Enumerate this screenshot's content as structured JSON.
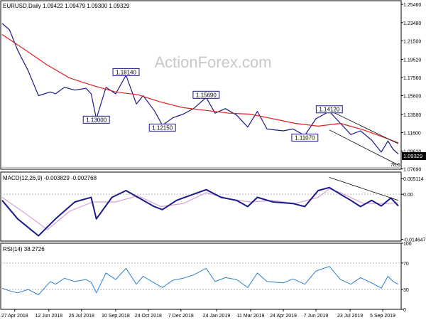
{
  "chart_data": {
    "type": "line",
    "panels": [
      {
        "id": "price",
        "title": "EURUSD,Daily  1.09422 1.09479 1.09300 1.09329",
        "ylim": [
          1.0765,
          1.2585
        ],
        "y_ticks": [
          "1.25460",
          "1.23480",
          "1.21500",
          "1.19520",
          "1.17560",
          "1.15600",
          "1.13580",
          "1.11600",
          "1.09620",
          "1.07690"
        ],
        "last_price_label": "1.09329",
        "fib_label": "78.6",
        "fib_level": 1.0785,
        "annotations": [
          {
            "label": "1.18140",
            "x": "2018-09-24",
            "y": 1.1814
          },
          {
            "label": "1.13000",
            "x": "2018-08-15",
            "y": 1.13
          },
          {
            "label": "1.12150",
            "x": "2018-11-12",
            "y": 1.1215
          },
          {
            "label": "1.15690",
            "x": "2019-01-10",
            "y": 1.1569
          },
          {
            "label": "1.11070",
            "x": "2019-05-23",
            "y": 1.1107
          },
          {
            "label": "1.14120",
            "x": "2019-06-25",
            "y": 1.1412
          }
        ],
        "series": [
          {
            "name": "price",
            "points": [
              [
                "2018-04-10",
                1.234
              ],
              [
                "2018-04-20",
                1.227
              ],
              [
                "2018-05-01",
                1.205
              ],
              [
                "2018-05-15",
                1.183
              ],
              [
                "2018-05-29",
                1.156
              ],
              [
                "2018-06-14",
                1.16
              ],
              [
                "2018-06-21",
                1.158
              ],
              [
                "2018-07-03",
                1.165
              ],
              [
                "2018-07-17",
                1.162
              ],
              [
                "2018-08-01",
                1.164
              ],
              [
                "2018-08-08",
                1.158
              ],
              [
                "2018-08-15",
                1.131
              ],
              [
                "2018-08-28",
                1.165
              ],
              [
                "2018-09-10",
                1.158
              ],
              [
                "2018-09-24",
                1.178
              ],
              [
                "2018-10-08",
                1.147
              ],
              [
                "2018-10-17",
                1.156
              ],
              [
                "2018-11-01",
                1.14
              ],
              [
                "2018-11-12",
                1.124
              ],
              [
                "2018-11-26",
                1.132
              ],
              [
                "2018-12-10",
                1.136
              ],
              [
                "2018-12-24",
                1.142
              ],
              [
                "2019-01-10",
                1.154
              ],
              [
                "2019-01-22",
                1.137
              ],
              [
                "2019-02-05",
                1.142
              ],
              [
                "2019-02-20",
                1.135
              ],
              [
                "2019-03-07",
                1.122
              ],
              [
                "2019-03-20",
                1.139
              ],
              [
                "2019-04-02",
                1.12
              ],
              [
                "2019-04-24",
                1.118
              ],
              [
                "2019-05-07",
                1.12
              ],
              [
                "2019-05-23",
                1.113
              ],
              [
                "2019-06-07",
                1.131
              ],
              [
                "2019-06-25",
                1.139
              ],
              [
                "2019-07-10",
                1.126
              ],
              [
                "2019-07-24",
                1.114
              ],
              [
                "2019-08-06",
                1.118
              ],
              [
                "2019-08-21",
                1.108
              ],
              [
                "2019-09-03",
                1.095
              ],
              [
                "2019-09-12",
                1.107
              ],
              [
                "2019-09-19",
                1.098
              ],
              [
                "2019-09-26",
                1.093
              ]
            ]
          },
          {
            "name": "moving average",
            "points": [
              [
                "2018-04-10",
                1.222
              ],
              [
                "2018-05-10",
                1.206
              ],
              [
                "2018-06-10",
                1.189
              ],
              [
                "2018-07-10",
                1.175
              ],
              [
                "2018-08-10",
                1.167
              ],
              [
                "2018-09-10",
                1.16
              ],
              [
                "2018-10-10",
                1.157
              ],
              [
                "2018-11-10",
                1.149
              ],
              [
                "2018-12-10",
                1.143
              ],
              [
                "2019-01-10",
                1.14
              ],
              [
                "2019-02-10",
                1.137
              ],
              [
                "2019-03-10",
                1.136
              ],
              [
                "2019-04-10",
                1.131
              ],
              [
                "2019-05-10",
                1.126
              ],
              [
                "2019-06-10",
                1.123
              ],
              [
                "2019-07-10",
                1.126
              ],
              [
                "2019-08-10",
                1.119
              ],
              [
                "2019-09-10",
                1.11
              ],
              [
                "2019-09-26",
                1.105
              ]
            ]
          }
        ],
        "trendlines": [
          [
            [
              "2019-06-25",
              1.14
            ],
            [
              "2019-09-26",
              1.104
            ]
          ],
          [
            [
              "2019-06-25",
              1.119
            ],
            [
              "2019-09-26",
              1.081
            ]
          ]
        ]
      },
      {
        "id": "macd",
        "title": "MACD(12,26,9) -0.003829 -0.002768",
        "ylim": [
          -0.0152,
          0.0072
        ],
        "y_ticks": [
          "0.005114",
          "0.00",
          "-0.014647"
        ],
        "series": [
          {
            "name": "macd",
            "points": [
              [
                "2018-04-10",
                -0.002
              ],
              [
                "2018-05-01",
                -0.008
              ],
              [
                "2018-05-29",
                -0.0135
              ],
              [
                "2018-06-21",
                -0.008
              ],
              [
                "2018-07-17",
                -0.0025
              ],
              [
                "2018-08-08",
                -0.001
              ],
              [
                "2018-08-15",
                -0.008
              ],
              [
                "2018-09-05",
                -0.001
              ],
              [
                "2018-09-24",
                0.0012
              ],
              [
                "2018-10-10",
                -0.001
              ],
              [
                "2018-11-01",
                -0.004
              ],
              [
                "2018-11-12",
                -0.005
              ],
              [
                "2018-12-01",
                -0.002
              ],
              [
                "2019-01-10",
                0.0015
              ],
              [
                "2019-01-30",
                -0.001
              ],
              [
                "2019-02-20",
                -0.002
              ],
              [
                "2019-03-07",
                -0.004
              ],
              [
                "2019-03-20",
                -0.001
              ],
              [
                "2019-04-10",
                -0.0025
              ],
              [
                "2019-05-07",
                -0.003
              ],
              [
                "2019-05-23",
                -0.004
              ],
              [
                "2019-06-10",
                0.0012
              ],
              [
                "2019-06-25",
                0.0022
              ],
              [
                "2019-07-10",
                0.0
              ],
              [
                "2019-07-24",
                -0.002
              ],
              [
                "2019-08-06",
                -0.004
              ],
              [
                "2019-08-21",
                -0.002
              ],
              [
                "2019-09-03",
                -0.0038
              ],
              [
                "2019-09-16",
                -0.0012
              ],
              [
                "2019-09-26",
                -0.0038
              ]
            ]
          },
          {
            "name": "signal",
            "points": [
              [
                "2018-04-10",
                -0.001
              ],
              [
                "2018-05-10",
                -0.006
              ],
              [
                "2018-06-10",
                -0.0115
              ],
              [
                "2018-07-10",
                -0.0055
              ],
              [
                "2018-08-10",
                -0.0025
              ],
              [
                "2018-09-10",
                -0.0025
              ],
              [
                "2018-10-10",
                -0.0005
              ],
              [
                "2018-11-10",
                -0.004
              ],
              [
                "2018-12-10",
                -0.003
              ],
              [
                "2019-01-10",
                0.0005
              ],
              [
                "2019-02-10",
                -0.0015
              ],
              [
                "2019-03-10",
                -0.0025
              ],
              [
                "2019-04-10",
                -0.002
              ],
              [
                "2019-05-10",
                -0.003
              ],
              [
                "2019-06-10",
                -0.001
              ],
              [
                "2019-06-25",
                0.0018
              ],
              [
                "2019-07-10",
                0.0005
              ],
              [
                "2019-08-10",
                -0.003
              ],
              [
                "2019-09-10",
                -0.003
              ],
              [
                "2019-09-26",
                -0.0028
              ]
            ]
          }
        ],
        "trendlines": [
          [
            [
              "2019-06-25",
              0.0055
            ],
            [
              "2019-09-26",
              -0.002
            ]
          ]
        ]
      },
      {
        "id": "rsi",
        "title": "RSI(14) 38.2726",
        "ylim": [
          0,
          100
        ],
        "y_ticks": [
          "100",
          "70",
          "30",
          "0"
        ],
        "levels": [
          70,
          30
        ],
        "series": [
          {
            "name": "rsi",
            "points": [
              [
                "2018-04-10",
                32
              ],
              [
                "2018-04-20",
                28
              ],
              [
                "2018-05-01",
                25
              ],
              [
                "2018-05-15",
                30
              ],
              [
                "2018-05-29",
                22
              ],
              [
                "2018-06-14",
                42
              ],
              [
                "2018-06-21",
                38
              ],
              [
                "2018-07-03",
                47
              ],
              [
                "2018-07-17",
                42
              ],
              [
                "2018-08-01",
                45
              ],
              [
                "2018-08-08",
                41
              ],
              [
                "2018-08-15",
                25
              ],
              [
                "2018-08-28",
                55
              ],
              [
                "2018-09-10",
                45
              ],
              [
                "2018-09-24",
                62
              ],
              [
                "2018-10-08",
                38
              ],
              [
                "2018-10-17",
                50
              ],
              [
                "2018-11-01",
                40
              ],
              [
                "2018-11-12",
                33
              ],
              [
                "2018-11-26",
                44
              ],
              [
                "2018-12-10",
                47
              ],
              [
                "2018-12-24",
                52
              ],
              [
                "2019-01-10",
                62
              ],
              [
                "2019-01-22",
                42
              ],
              [
                "2019-02-05",
                48
              ],
              [
                "2019-02-20",
                45
              ],
              [
                "2019-03-07",
                33
              ],
              [
                "2019-03-20",
                55
              ],
              [
                "2019-04-02",
                42
              ],
              [
                "2019-04-24",
                40
              ],
              [
                "2019-05-07",
                46
              ],
              [
                "2019-05-23",
                38
              ],
              [
                "2019-06-07",
                58
              ],
              [
                "2019-06-25",
                65
              ],
              [
                "2019-07-10",
                45
              ],
              [
                "2019-07-24",
                38
              ],
              [
                "2019-08-06",
                48
              ],
              [
                "2019-08-21",
                40
              ],
              [
                "2019-09-03",
                32
              ],
              [
                "2019-09-12",
                50
              ],
              [
                "2019-09-19",
                42
              ],
              [
                "2019-09-26",
                38
              ]
            ]
          }
        ]
      }
    ],
    "x_range": [
      "2018-04-10",
      "2019-09-26"
    ],
    "x_ticks": [
      {
        "date": "2018-04-27",
        "label": "27 Apr 2018"
      },
      {
        "date": "2018-06-12",
        "label": "12 Jun 2018"
      },
      {
        "date": "2018-07-26",
        "label": "26 Jul 2018"
      },
      {
        "date": "2018-09-10",
        "label": "10 Sep 2018"
      },
      {
        "date": "2018-10-24",
        "label": "24 Oct 2018"
      },
      {
        "date": "2018-12-07",
        "label": "7 Dec 2018"
      },
      {
        "date": "2019-01-24",
        "label": "24 Jan 2019"
      },
      {
        "date": "2019-03-11",
        "label": "11 Mar 2019"
      },
      {
        "date": "2019-04-24",
        "label": "24 Apr 2019"
      },
      {
        "date": "2019-06-07",
        "label": "7 Jun 2019"
      },
      {
        "date": "2019-07-23",
        "label": "23 Jul 2019"
      },
      {
        "date": "2019-09-05",
        "label": "5 Sep 2019"
      }
    ],
    "watermark": "ActionForex.com",
    "colors": {
      "price": "#1a1a8c",
      "moving_average": "#e02020",
      "macd": "#1a1a8c",
      "signal": "#d8a0d8",
      "rsi": "#2f80d0",
      "trendline": "#000000",
      "grid": "#b8b8b8"
    }
  }
}
